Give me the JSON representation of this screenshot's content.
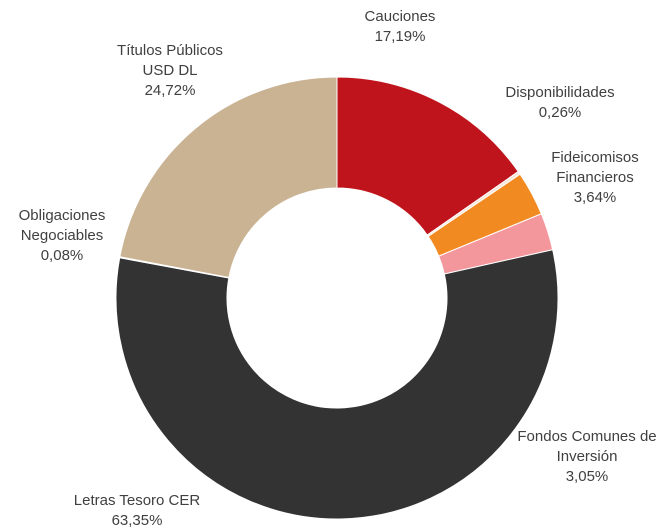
{
  "chart_data": {
    "type": "donut",
    "categories": [
      "Cauciones",
      "Disponibilidades",
      "Fideicomisos Financieros",
      "Fondos Comunes de Inversión",
      "Letras Tesoro CER",
      "Obligaciones Negociables",
      "Títulos Públicos USD DL"
    ],
    "values": [
      17.19,
      0.26,
      3.64,
      3.05,
      63.35,
      0.08,
      24.72
    ],
    "value_labels": [
      "17,19%",
      "0,26%",
      "3,64%",
      "3,05%",
      "63,35%",
      "0,08%",
      "24,72%"
    ],
    "colors": [
      "#c0141c",
      "#f5e6d8",
      "#f28a22",
      "#f4979c",
      "#333333",
      "#d9d9d9",
      "#c9b393"
    ]
  }
}
